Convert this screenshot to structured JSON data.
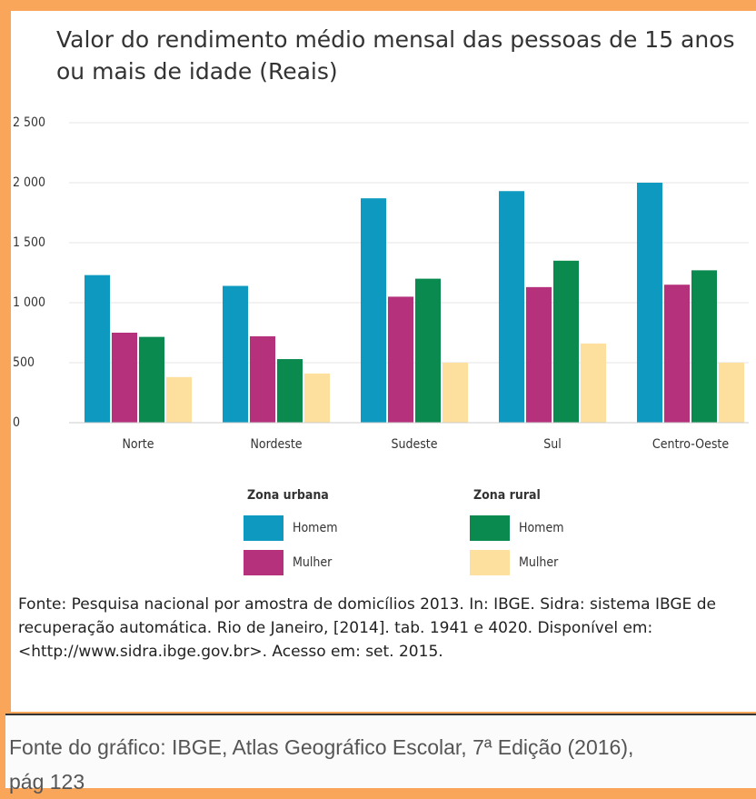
{
  "chart_data": {
    "type": "bar",
    "title": "Valor do rendimento médio mensal das pessoas de 15 anos ou mais de idade (Reais)",
    "categories": [
      "Norte",
      "Nordeste",
      "Sudeste",
      "Sul",
      "Centro-Oeste"
    ],
    "groups": [
      {
        "title": "Zona urbana",
        "series": [
          {
            "name": "Homem",
            "color": "#0e9ac0",
            "values": [
              1230,
              1140,
              1870,
              1930,
              2000
            ]
          },
          {
            "name": "Mulher",
            "color": "#b5317c",
            "values": [
              750,
              720,
              1050,
              1130,
              1150
            ]
          }
        ]
      },
      {
        "title": "Zona rural",
        "series": [
          {
            "name": "Homem",
            "color": "#0a8a4e",
            "values": [
              715,
              530,
              1200,
              1350,
              1270
            ]
          },
          {
            "name": "Mulher",
            "color": "#fddf9e",
            "values": [
              380,
              410,
              500,
              660,
              500
            ]
          }
        ]
      }
    ],
    "ylim": [
      0,
      2500
    ],
    "yticks": [
      0,
      500,
      {
        "value": 1000,
        "label": "1 000"
      },
      {
        "value": 1500,
        "label": "1 500"
      },
      {
        "value": 2000,
        "label": "2 000"
      },
      {
        "value": 2500,
        "label": "2 500"
      }
    ],
    "grid": true,
    "source": "Fonte: Pesquisa nacional por amostra de domicílios 2013. In: IBGE. Sidra: sistema IBGE de recuperação automática.  Rio de Janeiro, [2014]. tab. 1941 e 4020. Disponível em: <http://www.sidra.ibge.gov.br>. Acesso em: set. 2015."
  },
  "caption": "Fonte do gráfico: IBGE, Atlas Geográfico Escolar, 7ª Edição (2016), pág 123"
}
